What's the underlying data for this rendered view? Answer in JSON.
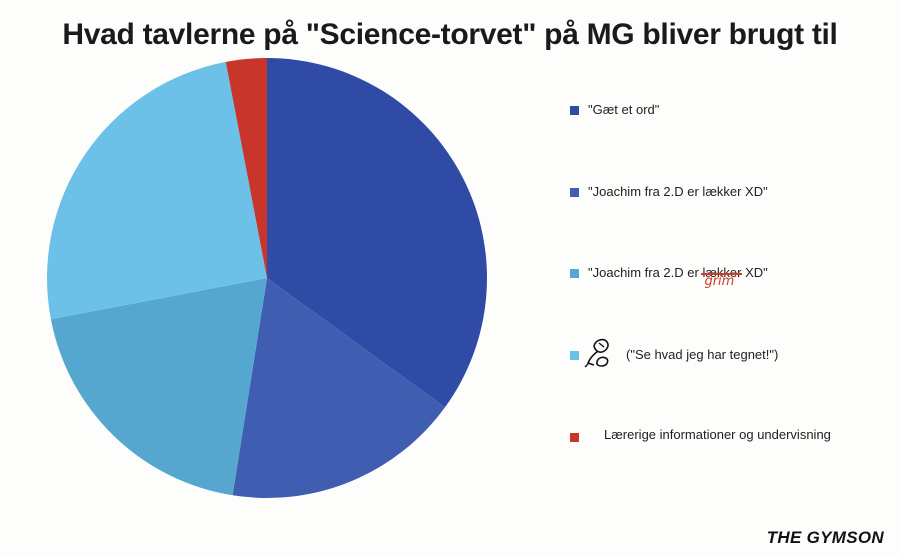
{
  "chart_data": {
    "type": "pie",
    "title": "Hvad tavlerne på \"Science-torvet\" på MG bliver brugt til",
    "start_angle_deg": 0,
    "direction": "clockwise",
    "legend_position": "right",
    "slices": [
      {
        "label": "\"Gæt et ord\"",
        "value": 35,
        "color": "#2f4ba6"
      },
      {
        "label": "\"Joachim fra 2.D er lækker XD\"",
        "value": 17.5,
        "color": "#3f5db1"
      },
      {
        "label": "\"Joachim fra 2.D er lækker XD\"",
        "value": 19.5,
        "color": "#55a7d0"
      },
      {
        "label": "(\"Se hvad jeg har tegnet!\")",
        "value": 25,
        "color": "#6cc1e8"
      },
      {
        "label": "Lærerige informationer og undervisning",
        "value": 3,
        "color": "#c8352a"
      }
    ]
  },
  "legend": {
    "item1": "\"Gæt et ord\"",
    "item2": "\"Joachim fra 2.D er lækker XD\"",
    "item3_prefix": "\"Joachim fra 2.D er ",
    "item3_struck": "lækker",
    "item3_suffix": " XD\"",
    "item3_annotation": "grim",
    "item4": "(\"Se hvad jeg har tegnet!\")",
    "item4_icon": "doodle-icon",
    "item5": "Lærerige informationer og undervisning"
  },
  "brand": "THE GYMSON"
}
